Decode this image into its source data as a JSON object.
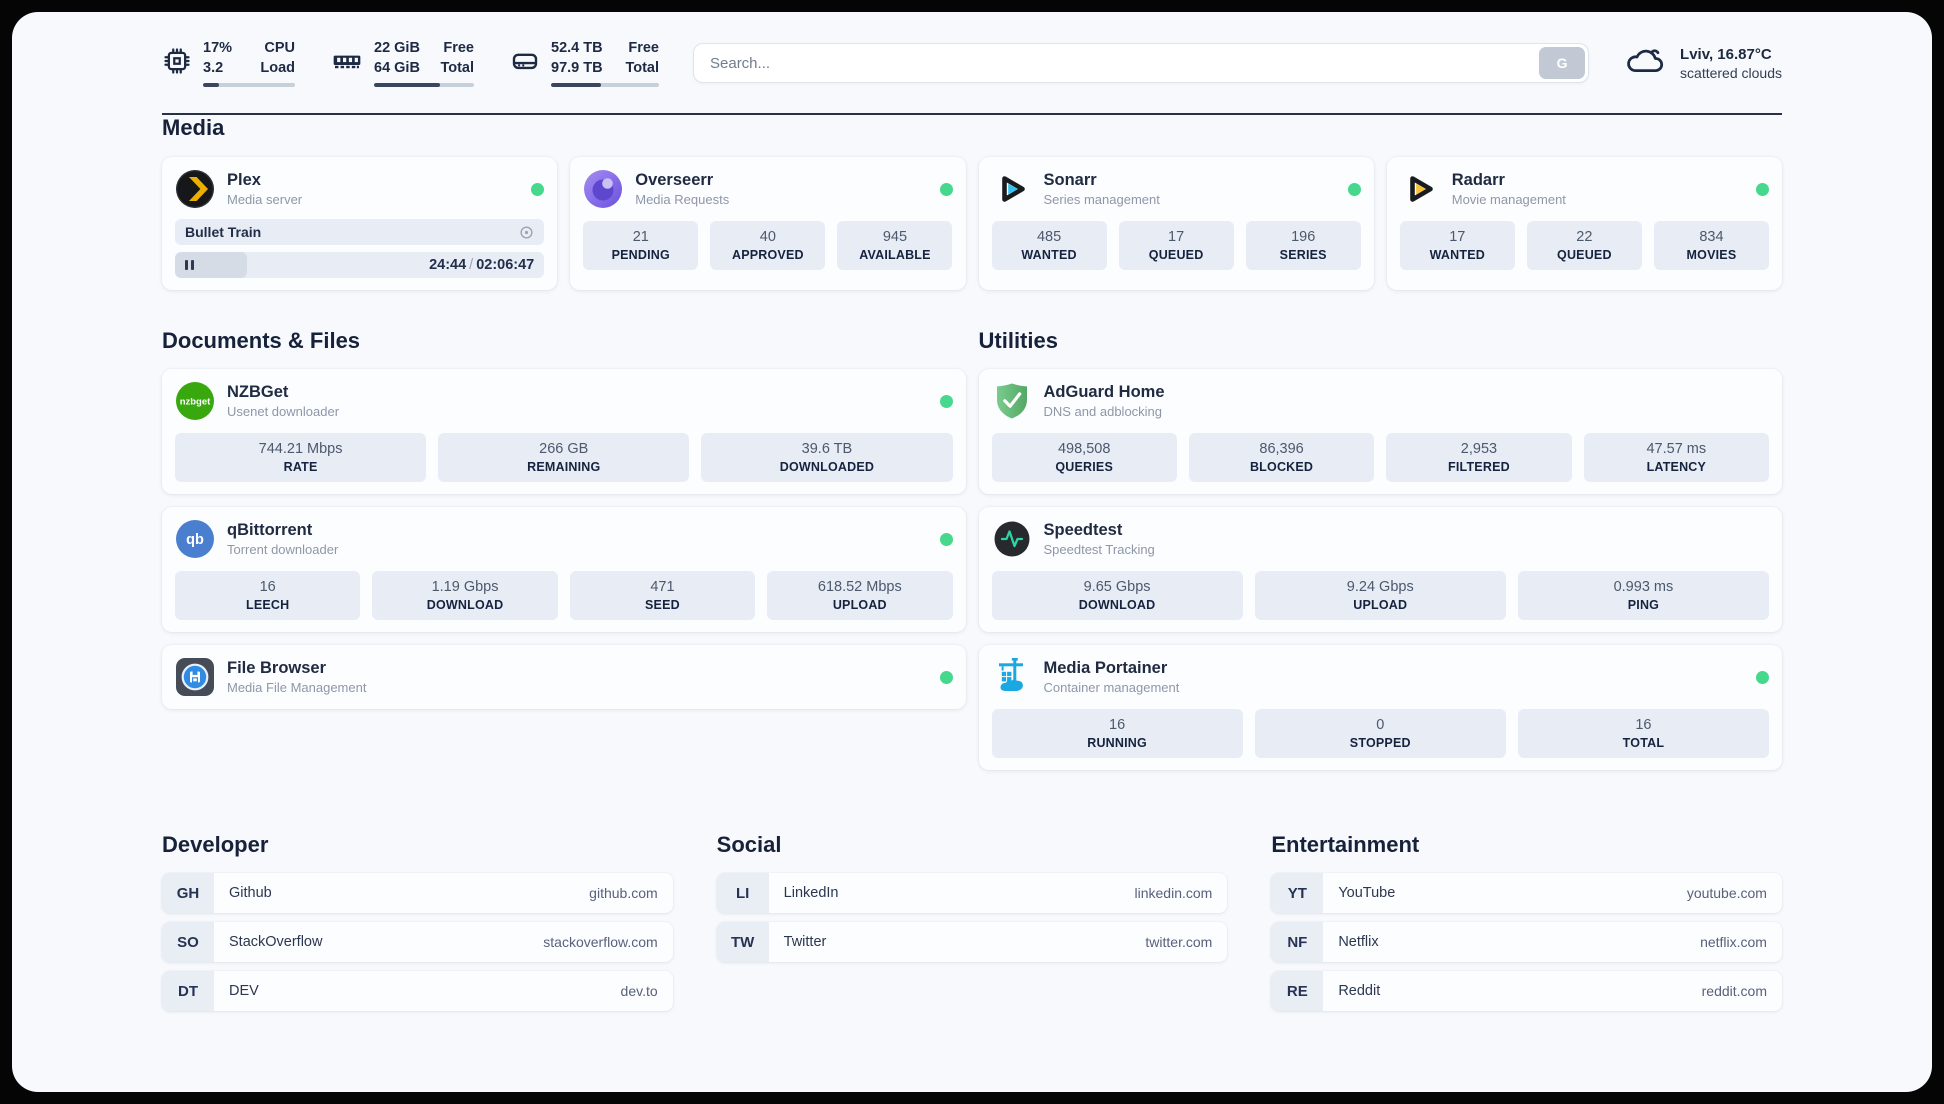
{
  "header": {
    "cpu": {
      "values": [
        "17%",
        "3.2"
      ],
      "labels": [
        "CPU",
        "Load"
      ],
      "progress": 17
    },
    "ram": {
      "values": [
        "22 GiB",
        "64 GiB"
      ],
      "labels": [
        "Free",
        "Total"
      ],
      "progress": 66
    },
    "disk": {
      "values": [
        "52.4 TB",
        "97.9 TB"
      ],
      "labels": [
        "Free",
        "Total"
      ],
      "progress": 46
    },
    "search": {
      "placeholder": "Search...",
      "button_label": "G"
    },
    "weather": {
      "location_temp": "Lviv, 16.87°C",
      "condition": "scattered clouds"
    }
  },
  "sections": {
    "media": {
      "title": "Media"
    },
    "documents": {
      "title": "Documents & Files"
    },
    "utilities": {
      "title": "Utilities"
    },
    "developer": {
      "title": "Developer"
    },
    "social": {
      "title": "Social"
    },
    "entertainment": {
      "title": "Entertainment"
    }
  },
  "apps": {
    "plex": {
      "name": "Plex",
      "desc": "Media server",
      "online": true,
      "now_playing": {
        "title": "Bullet Train",
        "elapsed": "24:44",
        "separator": "/",
        "duration": "02:06:47",
        "progress": 19.5
      }
    },
    "overseerr": {
      "name": "Overseerr",
      "desc": "Media Requests",
      "online": true,
      "stats": [
        {
          "value": "21",
          "label": "PENDING"
        },
        {
          "value": "40",
          "label": "APPROVED"
        },
        {
          "value": "945",
          "label": "AVAILABLE"
        }
      ]
    },
    "sonarr": {
      "name": "Sonarr",
      "desc": "Series management",
      "online": true,
      "stats": [
        {
          "value": "485",
          "label": "WANTED"
        },
        {
          "value": "17",
          "label": "QUEUED"
        },
        {
          "value": "196",
          "label": "SERIES"
        }
      ]
    },
    "radarr": {
      "name": "Radarr",
      "desc": "Movie management",
      "online": true,
      "stats": [
        {
          "value": "17",
          "label": "WANTED"
        },
        {
          "value": "22",
          "label": "QUEUED"
        },
        {
          "value": "834",
          "label": "MOVIES"
        }
      ]
    },
    "nzbget": {
      "name": "NZBGet",
      "desc": "Usenet downloader",
      "online": true,
      "icon_text": "nzbget",
      "stats": [
        {
          "value": "744.21 Mbps",
          "label": "RATE"
        },
        {
          "value": "266 GB",
          "label": "REMAINING"
        },
        {
          "value": "39.6 TB",
          "label": "DOWNLOADED"
        }
      ]
    },
    "qbittorrent": {
      "name": "qBittorrent",
      "desc": "Torrent downloader",
      "online": true,
      "icon_text": "qb",
      "stats": [
        {
          "value": "16",
          "label": "LEECH"
        },
        {
          "value": "1.19 Gbps",
          "label": "DOWNLOAD"
        },
        {
          "value": "471",
          "label": "SEED"
        },
        {
          "value": "618.52 Mbps",
          "label": "UPLOAD"
        }
      ]
    },
    "filebrowser": {
      "name": "File Browser",
      "desc": "Media File Management",
      "online": true
    },
    "adguard": {
      "name": "AdGuard Home",
      "desc": "DNS and adblocking",
      "stats": [
        {
          "value": "498,508",
          "label": "QUERIES"
        },
        {
          "value": "86,396",
          "label": "BLOCKED"
        },
        {
          "value": "2,953",
          "label": "FILTERED"
        },
        {
          "value": "47.57 ms",
          "label": "LATENCY"
        }
      ]
    },
    "speedtest": {
      "name": "Speedtest",
      "desc": "Speedtest Tracking",
      "stats": [
        {
          "value": "9.65 Gbps",
          "label": "DOWNLOAD"
        },
        {
          "value": "9.24 Gbps",
          "label": "UPLOAD"
        },
        {
          "value": "0.993 ms",
          "label": "PING"
        }
      ]
    },
    "portainer": {
      "name": "Media Portainer",
      "desc": "Container management",
      "online": true,
      "stats": [
        {
          "value": "16",
          "label": "RUNNING"
        },
        {
          "value": "0",
          "label": "STOPPED"
        },
        {
          "value": "16",
          "label": "TOTAL"
        }
      ]
    }
  },
  "links": {
    "developer": [
      {
        "abbr": "GH",
        "name": "Github",
        "url": "github.com"
      },
      {
        "abbr": "SO",
        "name": "StackOverflow",
        "url": "stackoverflow.com"
      },
      {
        "abbr": "DT",
        "name": "DEV",
        "url": "dev.to"
      }
    ],
    "social": [
      {
        "abbr": "LI",
        "name": "LinkedIn",
        "url": "linkedin.com"
      },
      {
        "abbr": "TW",
        "name": "Twitter",
        "url": "twitter.com"
      }
    ],
    "entertainment": [
      {
        "abbr": "YT",
        "name": "YouTube",
        "url": "youtube.com"
      },
      {
        "abbr": "NF",
        "name": "Netflix",
        "url": "netflix.com"
      },
      {
        "abbr": "RE",
        "name": "Reddit",
        "url": "reddit.com"
      }
    ]
  },
  "colors": {
    "status_online": "#46d88c",
    "header_icon": "#1e2a44",
    "plex_gold": "#ebaf00",
    "sonarr_cyan": "#34c3f1",
    "radarr_yellow": "#fcc12e",
    "nzbget_green": "#39a80f",
    "qbittorrent_blue": "#4a7fd0",
    "adguard_green": "#68bc71",
    "speedtest_pulse": "#2fd3a2",
    "portainer_blue": "#1ba7e0"
  }
}
